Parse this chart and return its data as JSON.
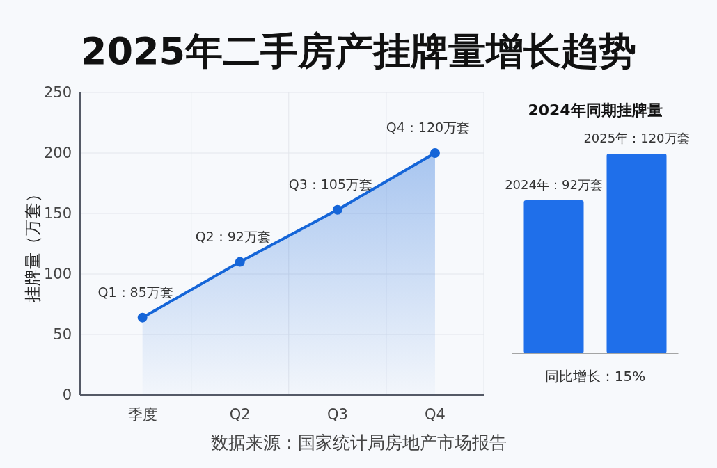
{
  "chart_data": [
    {
      "type": "area",
      "title": "2025年二手房产挂牌量增长趋势",
      "ylabel": "挂牌量（万套）",
      "categories": [
        "季度",
        "Q2",
        "Q3",
        "Q4"
      ],
      "series": [
        {
          "color": "#1565d8",
          "values": [
            64,
            110,
            153,
            200
          ],
          "value_labels": [
            "Q1：85万套",
            "Q2：92万套",
            "Q3：105万套",
            "Q4：120万套"
          ]
        }
      ],
      "ylim": [
        0,
        250
      ],
      "yticks": [
        0,
        50,
        100,
        150,
        200,
        250
      ],
      "grid": true,
      "marker": "circle",
      "annotations": [
        "数据来源：国家统计局房地产市场报告"
      ]
    },
    {
      "type": "bar",
      "title": "2024年同期挂牌量",
      "categories": [
        null,
        null
      ],
      "series": [
        {
          "color": "#1f6fea",
          "values": [
            92,
            120
          ],
          "value_labels": [
            "2024年：92万套",
            "2025年：120万套"
          ]
        }
      ],
      "annotations": [
        "同比增长：15%"
      ]
    }
  ]
}
